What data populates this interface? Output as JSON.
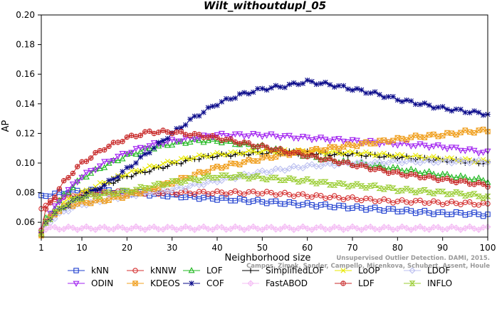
{
  "chart_data": {
    "type": "line",
    "title": "Wilt_withoutdupl_05",
    "xlabel": "Neighborhood size",
    "ylabel": "AP",
    "xlim": [
      1,
      100
    ],
    "ylim": [
      0.05,
      0.2
    ],
    "xticks": [
      "1",
      "10",
      "20",
      "30",
      "40",
      "50",
      "60",
      "70",
      "80",
      "90",
      "100"
    ],
    "yticks": [
      "0.06",
      "0.08",
      "0.10",
      "0.12",
      "0.14",
      "0.16",
      "0.18",
      "0.20"
    ],
    "grid": false,
    "legend_position": "bottom",
    "watermark": {
      "line1": "Unsupervised Outlier Detection. DAMI, 2015.",
      "line2": "Campos, Zimek, Sander, Campello, Micenkova, Schubert, Assent, Houle"
    },
    "x_anchor_points": [
      1,
      2,
      4,
      6,
      8,
      10,
      15,
      20,
      25,
      30,
      35,
      40,
      45,
      50,
      55,
      60,
      65,
      70,
      75,
      80,
      85,
      90,
      95,
      100
    ],
    "series": [
      {
        "name": "kNN",
        "color": "#1f3fcf",
        "marker": "square",
        "values": [
          0.077,
          0.078,
          0.079,
          0.08,
          0.081,
          0.081,
          0.081,
          0.08,
          0.079,
          0.078,
          0.077,
          0.076,
          0.075,
          0.074,
          0.073,
          0.072,
          0.071,
          0.07,
          0.069,
          0.068,
          0.067,
          0.066,
          0.066,
          0.065
        ]
      },
      {
        "name": "kNNW",
        "color": "#d43030",
        "marker": "circle",
        "values": [
          0.07,
          0.072,
          0.075,
          0.077,
          0.078,
          0.079,
          0.08,
          0.08,
          0.08,
          0.08,
          0.08,
          0.08,
          0.08,
          0.08,
          0.079,
          0.078,
          0.077,
          0.076,
          0.075,
          0.074,
          0.074,
          0.073,
          0.073,
          0.072
        ]
      },
      {
        "name": "LOF",
        "color": "#22b822",
        "marker": "triangle",
        "values": [
          0.052,
          0.062,
          0.07,
          0.078,
          0.084,
          0.09,
          0.098,
          0.105,
          0.11,
          0.113,
          0.115,
          0.115,
          0.113,
          0.111,
          0.108,
          0.105,
          0.102,
          0.1,
          0.098,
          0.096,
          0.094,
          0.092,
          0.09,
          0.088
        ]
      },
      {
        "name": "SimplifiedLOF",
        "color": "#000000",
        "marker": "plus",
        "values": [
          0.052,
          0.06,
          0.066,
          0.071,
          0.075,
          0.078,
          0.085,
          0.091,
          0.095,
          0.099,
          0.103,
          0.105,
          0.106,
          0.107,
          0.107,
          0.107,
          0.106,
          0.106,
          0.105,
          0.104,
          0.103,
          0.102,
          0.101,
          0.1
        ]
      },
      {
        "name": "LoOP",
        "color": "#e8e800",
        "marker": "x",
        "values": [
          0.052,
          0.061,
          0.068,
          0.073,
          0.077,
          0.08,
          0.087,
          0.093,
          0.097,
          0.101,
          0.104,
          0.106,
          0.107,
          0.108,
          0.108,
          0.108,
          0.107,
          0.107,
          0.106,
          0.105,
          0.104,
          0.103,
          0.102,
          0.101
        ]
      },
      {
        "name": "LDOF",
        "color": "#bcc0f0",
        "marker": "diamond",
        "values": [
          0.053,
          0.058,
          0.063,
          0.067,
          0.07,
          0.072,
          0.075,
          0.078,
          0.08,
          0.082,
          0.085,
          0.088,
          0.091,
          0.094,
          0.096,
          0.098,
          0.099,
          0.1,
          0.1,
          0.101,
          0.101,
          0.101,
          0.101,
          0.101
        ]
      },
      {
        "name": "ODIN",
        "color": "#a020f0",
        "marker": "triangle-down",
        "values": [
          0.053,
          0.062,
          0.07,
          0.078,
          0.085,
          0.091,
          0.1,
          0.107,
          0.112,
          0.115,
          0.117,
          0.119,
          0.119,
          0.119,
          0.118,
          0.117,
          0.116,
          0.115,
          0.114,
          0.113,
          0.112,
          0.111,
          0.109,
          0.107
        ]
      },
      {
        "name": "KDEOS",
        "color": "#f0a020",
        "marker": "square-x",
        "values": [
          0.052,
          0.06,
          0.066,
          0.07,
          0.072,
          0.073,
          0.075,
          0.078,
          0.082,
          0.087,
          0.092,
          0.097,
          0.1,
          0.103,
          0.106,
          0.108,
          0.11,
          0.112,
          0.114,
          0.116,
          0.118,
          0.119,
          0.121,
          0.122
        ]
      },
      {
        "name": "COF",
        "color": "#0a0a8a",
        "marker": "asterisk",
        "values": [
          0.052,
          0.06,
          0.066,
          0.07,
          0.074,
          0.077,
          0.085,
          0.096,
          0.108,
          0.12,
          0.131,
          0.14,
          0.146,
          0.15,
          0.152,
          0.155,
          0.153,
          0.15,
          0.147,
          0.143,
          0.14,
          0.137,
          0.135,
          0.133
        ]
      },
      {
        "name": "FastABOD",
        "color": "#f4bdf4",
        "marker": "diamond-plus",
        "values": [
          0.056,
          0.056,
          0.056,
          0.056,
          0.056,
          0.056,
          0.056,
          0.056,
          0.056,
          0.056,
          0.056,
          0.056,
          0.056,
          0.056,
          0.056,
          0.056,
          0.056,
          0.056,
          0.056,
          0.056,
          0.056,
          0.056,
          0.056,
          0.056
        ]
      },
      {
        "name": "LDF",
        "color": "#c82a2a",
        "marker": "circle-plus",
        "values": [
          0.055,
          0.068,
          0.078,
          0.087,
          0.094,
          0.1,
          0.11,
          0.117,
          0.121,
          0.121,
          0.119,
          0.117,
          0.114,
          0.111,
          0.108,
          0.105,
          0.102,
          0.099,
          0.096,
          0.093,
          0.091,
          0.089,
          0.087,
          0.085
        ]
      },
      {
        "name": "INFLO",
        "color": "#9acd32",
        "marker": "hourglass",
        "values": [
          0.052,
          0.06,
          0.066,
          0.071,
          0.074,
          0.077,
          0.079,
          0.081,
          0.084,
          0.087,
          0.089,
          0.091,
          0.091,
          0.09,
          0.089,
          0.088,
          0.086,
          0.085,
          0.084,
          0.082,
          0.081,
          0.08,
          0.079,
          0.077
        ]
      }
    ]
  }
}
